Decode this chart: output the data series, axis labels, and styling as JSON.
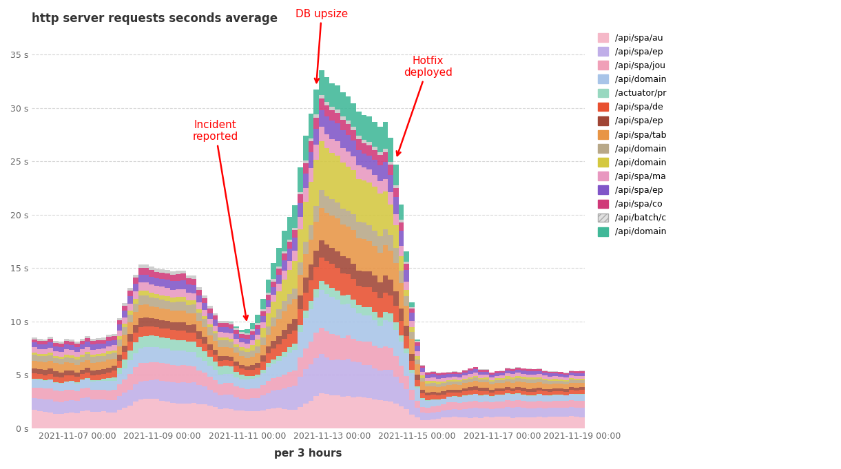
{
  "title": "http server requests seconds average",
  "xlabel": "per 3 hours",
  "ylim": [
    0,
    37
  ],
  "yticks": [
    0,
    5,
    10,
    15,
    20,
    25,
    30,
    35
  ],
  "ytick_labels": [
    "0 s",
    "5 s",
    "10 s",
    "15 s",
    "20 s",
    "25 s",
    "30 s",
    "35 s"
  ],
  "xtick_labels": [
    "2021-11-07 00:00",
    "2021-11-09 00:00",
    "2021-11-11 00:00",
    "2021-11-13 00:00",
    "2021-11-15 00:00",
    "2021-11-17 00:00",
    "2021-11-19 00:00"
  ],
  "series_names": [
    "/api/spa/au",
    "/api/spa/ep",
    "/api/spa/jou",
    "/api/domain",
    "/actuator/pr",
    "/api/spa/de",
    "/api/spa/ep",
    "/api/spa/tab",
    "/api/domain",
    "/api/domain",
    "/api/spa/ma",
    "/api/spa/ep",
    "/api/spa/co",
    "/api/batch/c",
    "/api/domain"
  ],
  "series_colors": [
    "#f5b8c8",
    "#c0aee8",
    "#f0a0b8",
    "#a8c4e8",
    "#98d8c0",
    "#e85030",
    "#a04535",
    "#e89545",
    "#b8a888",
    "#d4c840",
    "#e898c0",
    "#8055c8",
    "#d03878",
    "#c8c8c8",
    "#40b898"
  ],
  "n_bars": 104,
  "incident_bar": 40,
  "db_upsize_bar": 52,
  "hotfix_bar": 68,
  "background_color": "#ffffff",
  "grid_color": "#d8d8d8"
}
